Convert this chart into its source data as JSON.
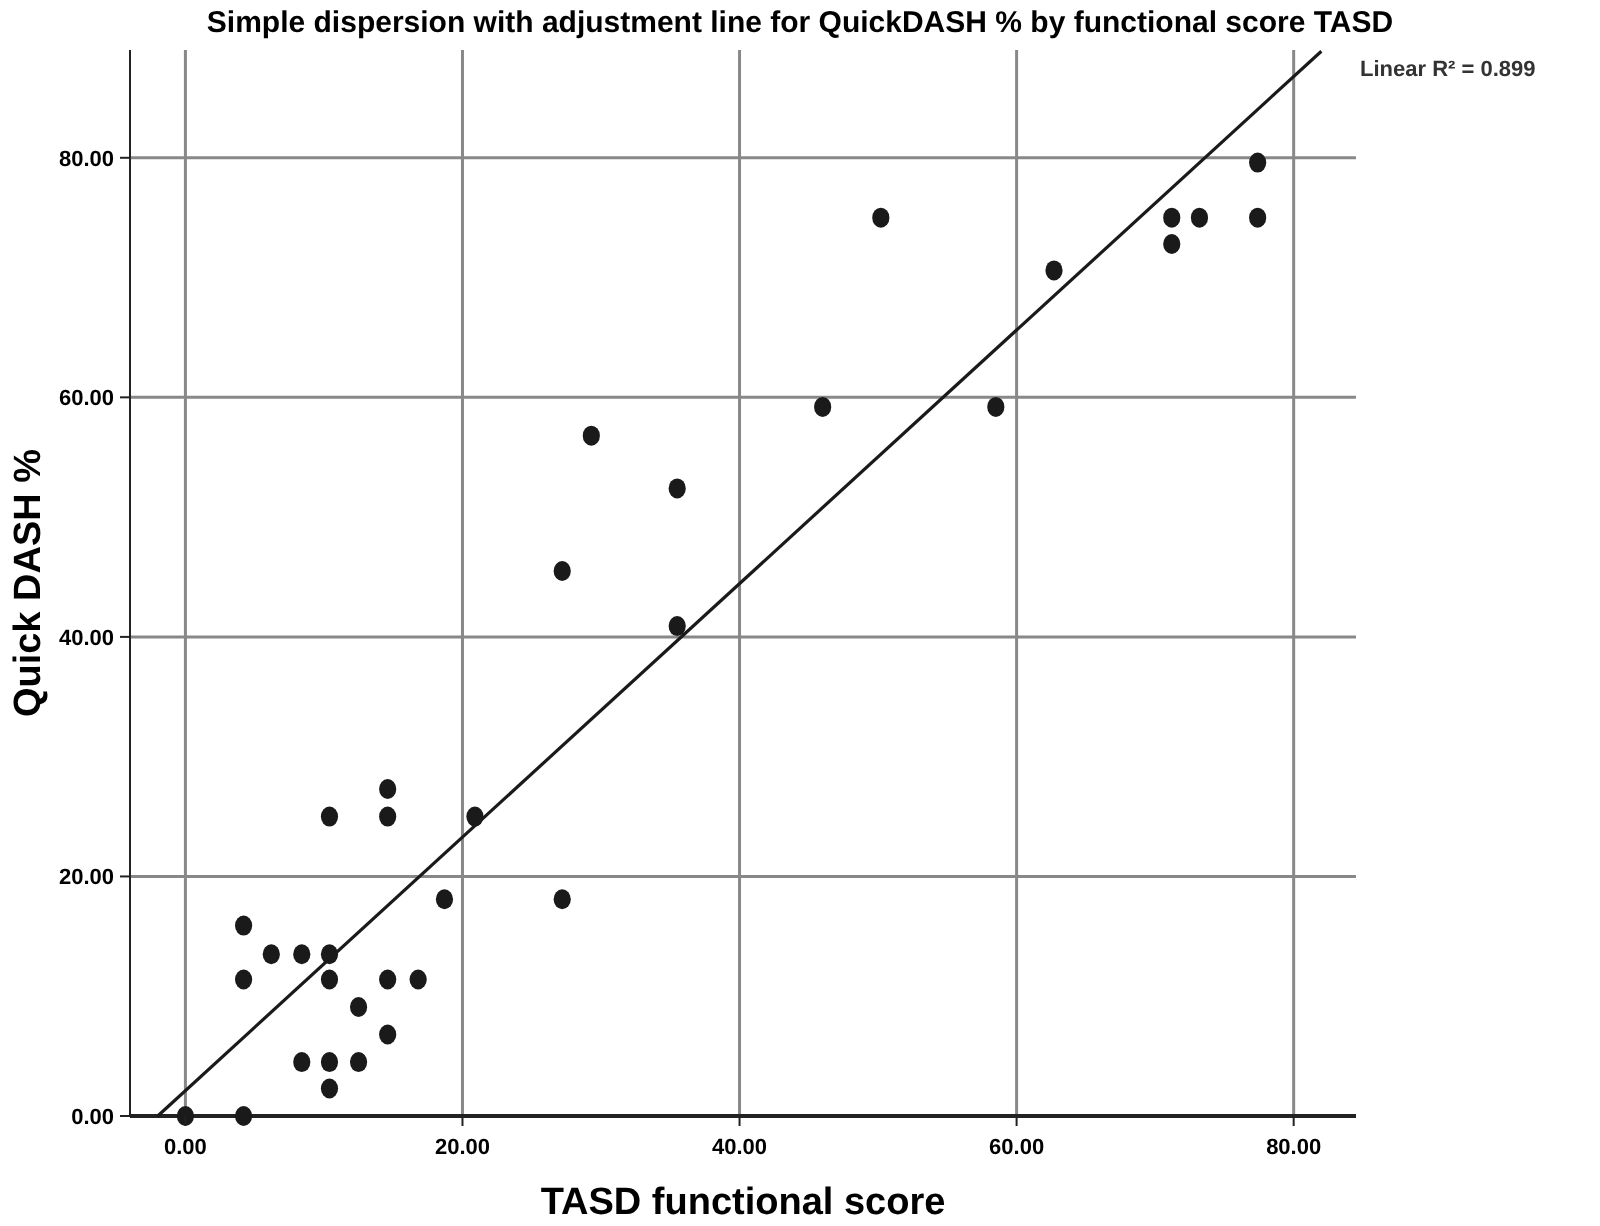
{
  "chart_data": {
    "type": "scatter",
    "title": "Simple dispersion with adjustment line for QuickDASH % by functional score TASD",
    "xlabel": "TASD functional score",
    "ylabel": "Quick DASH %",
    "annotations": [
      "Linear R² = 0.899"
    ],
    "xlim": [
      -4,
      84.5
    ],
    "ylim": [
      0,
      89
    ],
    "xticks": [
      {
        "value": 0,
        "label": "0.00"
      },
      {
        "value": 20,
        "label": "20.00"
      },
      {
        "value": 40,
        "label": "40.00"
      },
      {
        "value": 60,
        "label": "60.00"
      },
      {
        "value": 80,
        "label": "80.00"
      }
    ],
    "yticks": [
      {
        "value": 0,
        "label": "0.00"
      },
      {
        "value": 20,
        "label": "20.00"
      },
      {
        "value": 40,
        "label": "40.00"
      },
      {
        "value": 60,
        "label": "60.00"
      },
      {
        "value": 80,
        "label": "80.00"
      }
    ],
    "grid": true,
    "series": [
      {
        "color": "#1a1a1a",
        "marker": "circle",
        "x": [
          14.6,
          10.4,
          14.6,
          20.9,
          18.7,
          27.2,
          4.2,
          6.2,
          8.4,
          10.4,
          4.2,
          10.4,
          14.6,
          16.8,
          12.5,
          14.6,
          8.4,
          10.4,
          12.5,
          10.4,
          0,
          4.2,
          29.3,
          35.5,
          27.2,
          35.5,
          46.0,
          58.5,
          50.2,
          62.7,
          71.2,
          71.2,
          73.2,
          77.4,
          77.4
        ],
        "values": [
          27.3,
          25.0,
          25.0,
          25.0,
          18.1,
          18.1,
          15.9,
          13.5,
          13.5,
          13.5,
          11.4,
          11.4,
          11.4,
          11.4,
          9.1,
          6.8,
          4.5,
          4.5,
          4.5,
          2.3,
          0,
          0,
          56.8,
          52.4,
          45.5,
          40.9,
          59.2,
          59.2,
          75.0,
          70.6,
          75.0,
          72.8,
          75.0,
          79.6,
          75.0
        ]
      },
      {
        "type": "line",
        "color": "#1a1a1a",
        "marker": "none",
        "line_style": "solid",
        "x": [
          -2,
          82
        ],
        "values": [
          0,
          88.9
        ]
      }
    ]
  }
}
